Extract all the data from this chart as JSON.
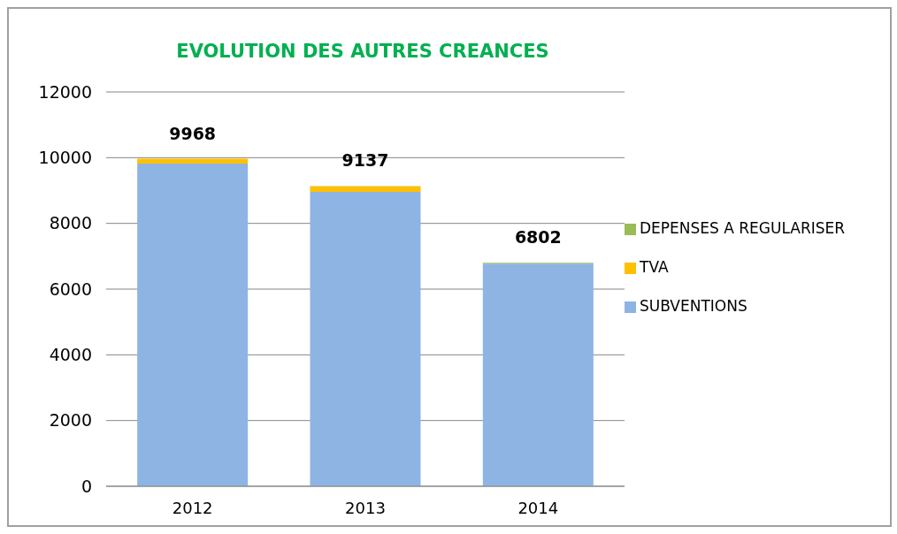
{
  "chart_data": {
    "type": "bar",
    "title": "EVOLUTION DES AUTRES CREANCES",
    "categories": [
      "2012",
      "2013",
      "2014"
    ],
    "stacked": true,
    "series": [
      {
        "name": "SUBVENTIONS",
        "color": "#8eb4e3",
        "values": [
          9818,
          8957,
          6772
        ]
      },
      {
        "name": "TVA",
        "color": "#ffc000",
        "values": [
          150,
          170,
          null
        ]
      },
      {
        "name": "DEPENSES A REGULARISER",
        "color": "#9bbb59",
        "values": [
          null,
          10,
          30
        ]
      }
    ],
    "totals": [
      "9968",
      "9137",
      "6802"
    ],
    "ylim": [
      0,
      12000
    ],
    "yticks": [
      0,
      2000,
      4000,
      6000,
      8000,
      10000,
      12000
    ],
    "grid": "y",
    "legend": "right"
  }
}
